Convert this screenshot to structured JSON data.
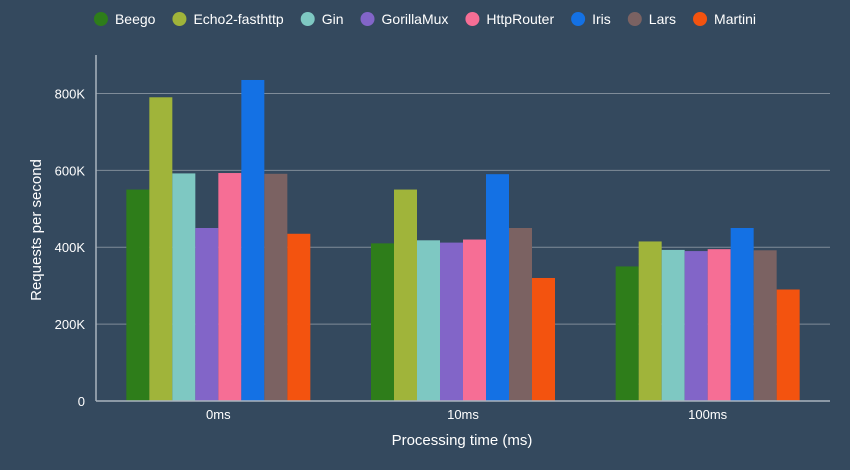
{
  "chart_data": {
    "type": "bar",
    "title": "",
    "xlabel": "Processing time (ms)",
    "ylabel": "Requests per second",
    "categories": [
      "0ms",
      "10ms",
      "100ms"
    ],
    "ylim": [
      0,
      900000
    ],
    "yticks": [
      0,
      200000,
      400000,
      600000,
      800000
    ],
    "ytick_labels": [
      "0",
      "200K",
      "400K",
      "600K",
      "800K"
    ],
    "grid": true,
    "legend_position": "top",
    "series": [
      {
        "name": "Beego",
        "color": "#2e7d1a",
        "values": [
          550000,
          410000,
          350000
        ]
      },
      {
        "name": "Echo2-fasthttp",
        "color": "#a0b43a",
        "values": [
          790000,
          550000,
          415000
        ]
      },
      {
        "name": "Gin",
        "color": "#7ec8c2",
        "values": [
          592000,
          418000,
          393000
        ]
      },
      {
        "name": "GorillaMux",
        "color": "#8265c8",
        "values": [
          450000,
          412000,
          390000
        ]
      },
      {
        "name": "HttpRouter",
        "color": "#f66e95",
        "values": [
          593000,
          420000,
          395000
        ]
      },
      {
        "name": "Iris",
        "color": "#1471e4",
        "values": [
          835000,
          590000,
          450000
        ]
      },
      {
        "name": "Lars",
        "color": "#7b6262",
        "values": [
          591000,
          450000,
          392000
        ]
      },
      {
        "name": "Martini",
        "color": "#f3530f",
        "values": [
          435000,
          320000,
          290000
        ]
      }
    ]
  }
}
